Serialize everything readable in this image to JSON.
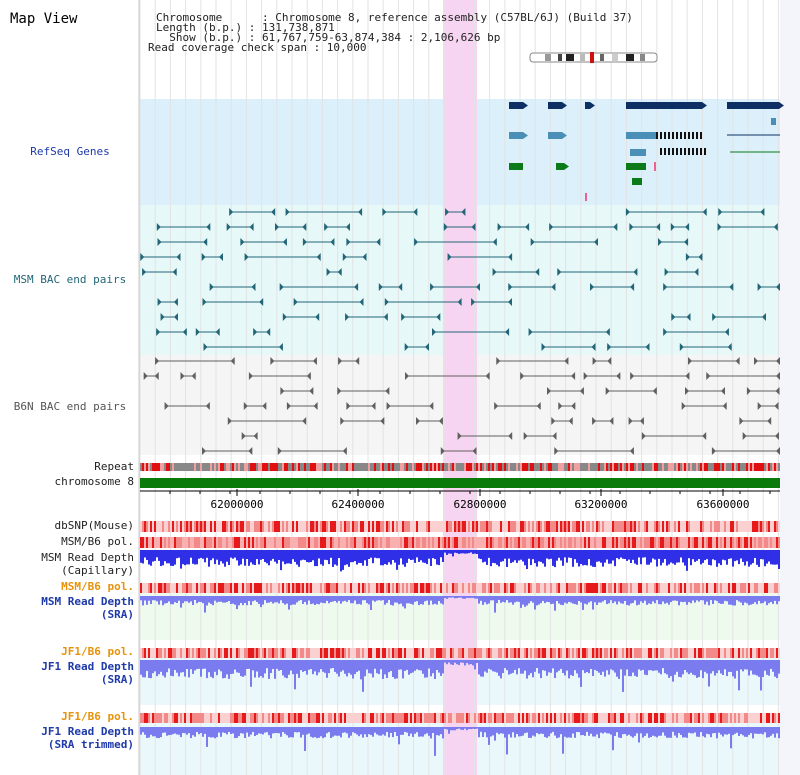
{
  "header": {
    "title": "Map View",
    "info_lines": [
      "Chromosome      : Chromosome 8, reference assembly (C57BL/6J) (Build 37)",
      "Length (b.p.) : 131,738,871",
      "  Show (b.p.) : 61,767,759-63,874,384 : 2,106,626 bp",
      "Read coverage check span : 10,000"
    ]
  },
  "tracks": {
    "refseq": "RefSeq Genes",
    "msm_bac": "MSM BAC end pairs",
    "b6n_bac": "B6N BAC end pairs",
    "repeat": "Repeat",
    "chromosome": "chromosome 8",
    "dbsnp": "dbSNP(Mouse)",
    "msm_b6_pol_1": "MSM/B6 pol.",
    "msm_depth_cap_1": "MSM Read Depth",
    "msm_depth_cap_2": "(Capillary)",
    "msm_b6_pol_2": "MSM/B6 pol.",
    "msm_depth_sra_1": "MSM Read Depth",
    "msm_depth_sra_2": "(SRA)",
    "jf1_b6_pol_1": "JF1/B6 pol.",
    "jf1_depth_sra_1": "JF1 Read Depth",
    "jf1_depth_sra_2": "(SRA)",
    "jf1_b6_pol_2": "JF1/B6 pol.",
    "jf1_depth_trim_1": "JF1 Read Depth",
    "jf1_depth_trim_2": "(SRA trimmed)"
  },
  "ruler": {
    "ticks": [
      "62000000",
      "62400000",
      "62800000",
      "63200000",
      "63600000"
    ]
  },
  "colors": {
    "highlight": "#f7d5f2",
    "refseq_bg": "#dbf0fb",
    "bac_bg": "#e6f8f8",
    "refseq_dark": "#0d2f63",
    "refseq_mid": "#4a8fb8",
    "refseq_green": "#0b7a18",
    "msm_line": "#236677",
    "b6n_line": "#606060",
    "chromosome": "#0a7a0a",
    "depth_blue": "#2f2fe8",
    "depth_light": "#7b7bf0"
  }
}
